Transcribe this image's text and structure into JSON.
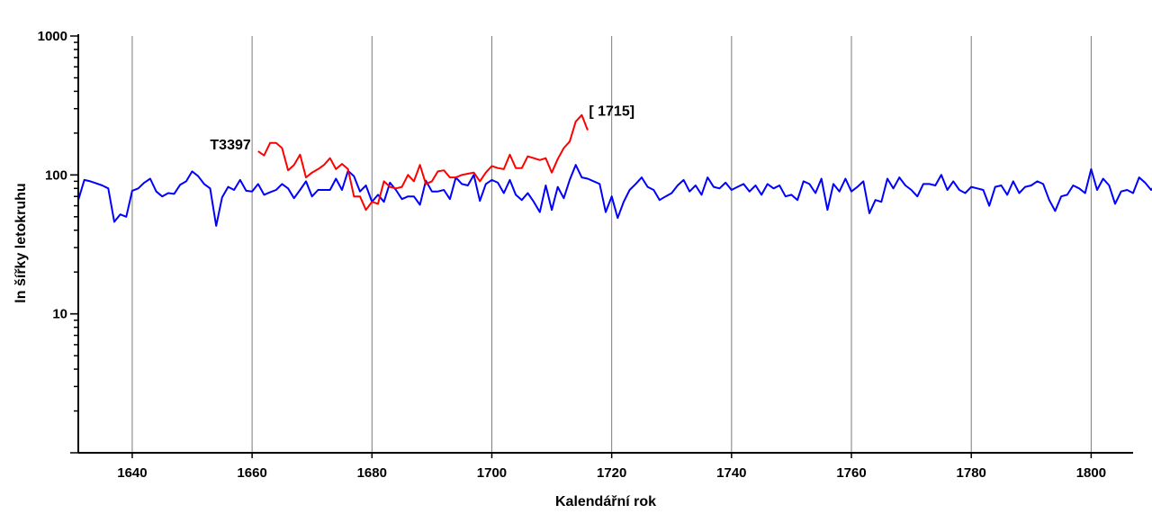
{
  "chart_data": {
    "type": "line",
    "xlabel": "Kalendářní rok",
    "ylabel": "ln šířky letokruhu",
    "xlim": [
      1631,
      1807
    ],
    "ylim": [
      1,
      1000
    ],
    "y_scale": "log",
    "x_ticks": [
      1640,
      1660,
      1680,
      1700,
      1720,
      1740,
      1760,
      1780,
      1800
    ],
    "x_tick_labels": [
      "1640",
      "1660",
      "1680",
      "1700",
      "1720",
      "1740",
      "1760",
      "1780",
      "1800"
    ],
    "y_ticks": [
      10,
      100,
      1000
    ],
    "y_tick_labels": [
      "10",
      "100",
      "1000"
    ],
    "vertical_gridlines": true,
    "series": [
      {
        "color": "#0000ff",
        "x_start": 1631,
        "values": [
          66,
          92,
          90,
          87,
          84,
          80,
          46,
          52,
          50,
          77,
          80,
          88,
          94,
          76,
          70,
          74,
          73,
          85,
          90,
          106,
          98,
          86,
          80,
          43,
          69,
          82,
          78,
          92,
          77,
          76,
          86,
          72,
          75,
          78,
          86,
          80,
          68,
          78,
          90,
          70,
          78,
          78,
          78,
          94,
          78,
          107,
          98,
          76,
          84,
          64,
          72,
          64,
          88,
          78,
          67,
          70,
          70,
          61,
          91,
          76,
          76,
          78,
          67,
          96,
          86,
          84,
          100,
          65,
          86,
          92,
          88,
          74,
          92,
          72,
          66,
          74,
          64,
          54,
          84,
          56,
          82,
          68,
          92,
          118,
          96,
          94,
          90,
          86,
          54,
          70,
          49,
          64,
          78,
          86,
          96,
          82,
          78,
          66,
          70,
          74,
          84,
          92,
          76,
          84,
          72,
          96,
          82,
          80,
          88,
          78,
          82,
          86,
          76,
          84,
          72,
          86,
          80,
          84,
          70,
          72,
          66,
          90,
          86,
          74,
          94,
          56,
          86,
          76,
          94,
          76,
          82,
          90,
          53,
          66,
          64,
          94,
          80,
          96,
          84,
          78,
          70,
          86,
          86,
          84,
          100,
          78,
          90,
          78,
          74,
          82,
          80,
          78,
          60,
          82,
          84,
          72,
          90,
          74,
          82,
          84,
          90,
          86,
          66,
          55,
          70,
          72,
          84,
          80,
          74,
          110,
          78,
          94,
          84,
          62,
          76,
          78,
          74,
          96,
          88,
          78,
          88
        ]
      },
      {
        "color": "#ff0000",
        "x_start": 1661,
        "values": [
          148,
          138,
          170,
          170,
          156,
          108,
          118,
          140,
          96,
          104,
          110,
          118,
          132,
          110,
          120,
          110,
          70,
          70,
          56,
          64,
          62,
          90,
          82,
          80,
          82,
          100,
          90,
          118,
          86,
          90,
          106,
          108,
          96,
          96,
          100,
          102,
          104,
          90,
          104,
          116,
          112,
          110,
          140,
          112,
          112,
          136,
          132,
          128,
          132,
          104,
          130,
          156,
          174,
          242,
          270,
          210
        ]
      }
    ],
    "annotations": [
      {
        "text": "T3397",
        "x": 1661,
        "anchor": "end"
      },
      {
        "text": "[ 1715]",
        "x": 1715,
        "anchor": "start"
      }
    ]
  }
}
